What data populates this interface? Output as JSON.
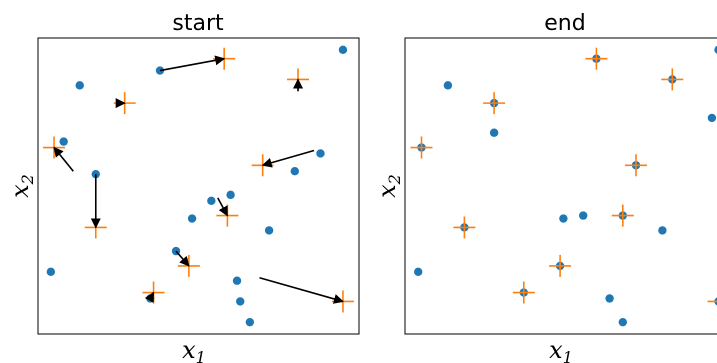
{
  "chart_data": [
    {
      "type": "scatter",
      "title": "start",
      "xlabel": "x",
      "xlabel_sub": "1",
      "ylabel": "x",
      "ylabel_sub": "2",
      "xlim": [
        0,
        1
      ],
      "ylim": [
        0,
        1
      ],
      "ticks": "none",
      "grid": false,
      "colors": {
        "point": "#1f77b4",
        "target": "#ff7f0e",
        "arrow": "#000000"
      },
      "points": [
        [
          0.13,
          0.84
        ],
        [
          0.38,
          0.89
        ],
        [
          0.95,
          0.96
        ],
        [
          0.08,
          0.65
        ],
        [
          0.18,
          0.54
        ],
        [
          0.48,
          0.39
        ],
        [
          0.54,
          0.45
        ],
        [
          0.8,
          0.55
        ],
        [
          0.72,
          0.35
        ],
        [
          0.6,
          0.47
        ],
        [
          0.43,
          0.28
        ],
        [
          0.35,
          0.12
        ],
        [
          0.04,
          0.21
        ],
        [
          0.62,
          0.18
        ],
        [
          0.63,
          0.11
        ],
        [
          0.66,
          0.04
        ],
        [
          0.88,
          0.61
        ]
      ],
      "targets": [
        [
          0.58,
          0.93
        ],
        [
          0.27,
          0.78
        ],
        [
          0.81,
          0.86
        ],
        [
          0.05,
          0.63
        ],
        [
          0.7,
          0.57
        ],
        [
          0.59,
          0.4
        ],
        [
          0.18,
          0.36
        ],
        [
          0.47,
          0.23
        ],
        [
          0.36,
          0.14
        ],
        [
          0.95,
          0.11
        ]
      ],
      "arrows": [
        [
          0.38,
          0.89,
          0.58,
          0.93
        ],
        [
          0.25,
          0.78,
          0.27,
          0.78
        ],
        [
          0.81,
          0.82,
          0.81,
          0.86
        ],
        [
          0.11,
          0.55,
          0.05,
          0.63
        ],
        [
          0.86,
          0.62,
          0.7,
          0.57
        ],
        [
          0.56,
          0.46,
          0.59,
          0.4
        ],
        [
          0.18,
          0.54,
          0.18,
          0.36
        ],
        [
          0.43,
          0.28,
          0.47,
          0.23
        ],
        [
          0.35,
          0.12,
          0.36,
          0.14
        ],
        [
          0.69,
          0.19,
          0.95,
          0.11
        ]
      ]
    },
    {
      "type": "scatter",
      "title": "end",
      "xlabel": "x",
      "xlabel_sub": "1",
      "ylabel": "x",
      "ylabel_sub": "2",
      "xlim": [
        0,
        1
      ],
      "ylim": [
        0,
        1
      ],
      "ticks": "none",
      "grid": false,
      "colors": {
        "point": "#1f77b4",
        "target": "#ff7f0e"
      },
      "points": [
        [
          0.13,
          0.84
        ],
        [
          0.95,
          0.96
        ],
        [
          0.27,
          0.78
        ],
        [
          0.58,
          0.93
        ],
        [
          0.81,
          0.86
        ],
        [
          0.93,
          0.73
        ],
        [
          0.27,
          0.68
        ],
        [
          0.05,
          0.63
        ],
        [
          0.7,
          0.57
        ],
        [
          0.48,
          0.39
        ],
        [
          0.54,
          0.4
        ],
        [
          0.66,
          0.4
        ],
        [
          0.18,
          0.36
        ],
        [
          0.78,
          0.35
        ],
        [
          0.47,
          0.23
        ],
        [
          0.04,
          0.21
        ],
        [
          0.36,
          0.14
        ],
        [
          0.62,
          0.12
        ],
        [
          0.66,
          0.04
        ],
        [
          0.95,
          0.11
        ]
      ],
      "targets": [
        [
          0.58,
          0.93
        ],
        [
          0.27,
          0.78
        ],
        [
          0.81,
          0.86
        ],
        [
          0.05,
          0.63
        ],
        [
          0.7,
          0.57
        ],
        [
          0.66,
          0.4
        ],
        [
          0.18,
          0.36
        ],
        [
          0.47,
          0.23
        ],
        [
          0.36,
          0.14
        ],
        [
          0.95,
          0.11
        ]
      ]
    }
  ]
}
